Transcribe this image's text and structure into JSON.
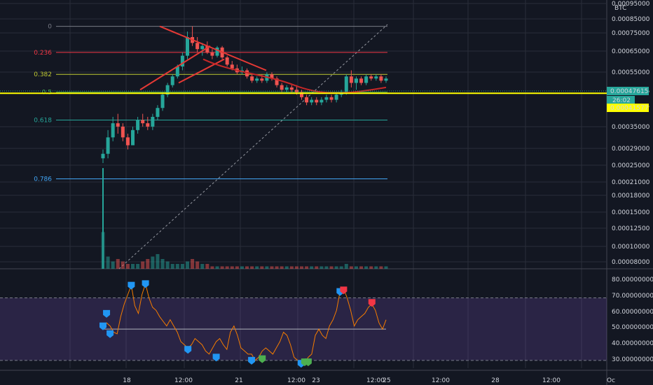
{
  "chart_data": [
    {
      "type": "candlestick",
      "symbol_unit": "BTC",
      "price_axis": {
        "scale": "log",
        "ticks": [
          "0.00095000",
          "0.00085000",
          "0.00075000",
          "0.00065000",
          "0.00055000",
          "0.00047615",
          "0.00041577",
          "0.00035000",
          "0.00029000",
          "0.00025000",
          "0.00021000",
          "0.00018000",
          "0.00015000",
          "0.00012500",
          "0.00010000",
          "0.00008000"
        ]
      },
      "price_badges": [
        {
          "label": "0.00047615",
          "color": "#26a69a",
          "text_color": "#000000"
        },
        {
          "label": "26:02",
          "color": "#26a69a",
          "text_color": "#000000"
        },
        {
          "label": "0.00041577",
          "color": "#ffff00",
          "text_color": "#000000"
        }
      ],
      "time_ticks": [
        "18",
        "12:00",
        "21",
        "12:00",
        "23",
        "12:00",
        "25",
        "12:00",
        "28",
        "12:00",
        "Oc"
      ],
      "fib_levels": [
        {
          "label": "0",
          "value": 0.0008,
          "color": "#787b86"
        },
        {
          "label": "0.236",
          "value": 0.00062,
          "color": "#f23645"
        },
        {
          "label": "0.382",
          "value": 0.0005,
          "color": "#c0ca33"
        },
        {
          "label": "0.5",
          "value": 0.00042,
          "color": "#4caf50"
        },
        {
          "label": "0.618",
          "value": 0.00032,
          "color": "#26a69a"
        },
        {
          "label": "0.786",
          "value": 0.00018,
          "color": "#42a5f5"
        }
      ],
      "horizontal_line": {
        "value": 0.00041577,
        "color": "#ffff00"
      },
      "series": [
        {
          "name": "",
          "points": [
            {
              "t": 0,
              "o": 0.00022,
              "h": 0.00024,
              "l": 0.00021,
              "c": 0.00023
            },
            {
              "t": 1,
              "o": 0.00023,
              "h": 0.00029,
              "l": 0.00022,
              "c": 0.00027
            },
            {
              "t": 2,
              "o": 0.00027,
              "h": 0.00033,
              "l": 0.00026,
              "c": 0.00031
            },
            {
              "t": 3,
              "o": 0.00031,
              "h": 0.00034,
              "l": 0.00028,
              "c": 0.0003
            },
            {
              "t": 4,
              "o": 0.0003,
              "h": 0.00031,
              "l": 0.00026,
              "c": 0.00027
            },
            {
              "t": 5,
              "o": 0.00027,
              "h": 0.00028,
              "l": 0.00024,
              "c": 0.00025
            },
            {
              "t": 6,
              "o": 0.00025,
              "h": 0.0003,
              "l": 0.00025,
              "c": 0.00029
            },
            {
              "t": 7,
              "o": 0.00029,
              "h": 0.00033,
              "l": 0.00028,
              "c": 0.00032
            },
            {
              "t": 8,
              "o": 0.00032,
              "h": 0.00034,
              "l": 0.0003,
              "c": 0.00031
            },
            {
              "t": 9,
              "o": 0.00031,
              "h": 0.00033,
              "l": 0.00029,
              "c": 0.0003
            },
            {
              "t": 10,
              "o": 0.0003,
              "h": 0.00034,
              "l": 0.00029,
              "c": 0.00033
            },
            {
              "t": 11,
              "o": 0.00033,
              "h": 0.00037,
              "l": 0.00032,
              "c": 0.00036
            },
            {
              "t": 12,
              "o": 0.00036,
              "h": 0.00042,
              "l": 0.00035,
              "c": 0.00041
            },
            {
              "t": 13,
              "o": 0.00041,
              "h": 0.00046,
              "l": 0.0004,
              "c": 0.00045
            },
            {
              "t": 14,
              "o": 0.00045,
              "h": 0.0005,
              "l": 0.00044,
              "c": 0.00049
            },
            {
              "t": 15,
              "o": 0.00049,
              "h": 0.00055,
              "l": 0.00048,
              "c": 0.00054
            },
            {
              "t": 16,
              "o": 0.00054,
              "h": 0.00062,
              "l": 0.00052,
              "c": 0.0006
            },
            {
              "t": 17,
              "o": 0.0006,
              "h": 0.00076,
              "l": 0.00058,
              "c": 0.00072
            },
            {
              "t": 18,
              "o": 0.00072,
              "h": 0.0008,
              "l": 0.00066,
              "c": 0.00068
            },
            {
              "t": 19,
              "o": 0.00068,
              "h": 0.00072,
              "l": 0.00062,
              "c": 0.00064
            },
            {
              "t": 20,
              "o": 0.00064,
              "h": 0.00068,
              "l": 0.0006,
              "c": 0.00066
            },
            {
              "t": 21,
              "o": 0.00066,
              "h": 0.00069,
              "l": 0.00061,
              "c": 0.00062
            },
            {
              "t": 22,
              "o": 0.00062,
              "h": 0.00064,
              "l": 0.00058,
              "c": 0.0006
            },
            {
              "t": 23,
              "o": 0.0006,
              "h": 0.00066,
              "l": 0.00059,
              "c": 0.00065
            },
            {
              "t": 24,
              "o": 0.00065,
              "h": 0.00066,
              "l": 0.00058,
              "c": 0.00059
            },
            {
              "t": 25,
              "o": 0.00059,
              "h": 0.0006,
              "l": 0.00054,
              "c": 0.00055
            },
            {
              "t": 26,
              "o": 0.00055,
              "h": 0.00057,
              "l": 0.00052,
              "c": 0.00053
            },
            {
              "t": 27,
              "o": 0.00053,
              "h": 0.00055,
              "l": 0.0005,
              "c": 0.00051
            },
            {
              "t": 28,
              "o": 0.00051,
              "h": 0.00054,
              "l": 0.0005,
              "c": 0.00052
            },
            {
              "t": 29,
              "o": 0.00052,
              "h": 0.00053,
              "l": 0.00048,
              "c": 0.00049
            },
            {
              "t": 30,
              "o": 0.00049,
              "h": 0.0005,
              "l": 0.00046,
              "c": 0.00047
            },
            {
              "t": 31,
              "o": 0.00047,
              "h": 0.00049,
              "l": 0.00046,
              "c": 0.00048
            },
            {
              "t": 32,
              "o": 0.00048,
              "h": 0.0005,
              "l": 0.00046,
              "c": 0.00047
            },
            {
              "t": 33,
              "o": 0.00047,
              "h": 0.00051,
              "l": 0.00046,
              "c": 0.0005
            },
            {
              "t": 34,
              "o": 0.0005,
              "h": 0.00051,
              "l": 0.00047,
              "c": 0.00048
            },
            {
              "t": 35,
              "o": 0.00048,
              "h": 0.00049,
              "l": 0.00044,
              "c": 0.00045
            },
            {
              "t": 36,
              "o": 0.00045,
              "h": 0.00046,
              "l": 0.00042,
              "c": 0.00043
            },
            {
              "t": 37,
              "o": 0.00043,
              "h": 0.00045,
              "l": 0.00042,
              "c": 0.00044
            },
            {
              "t": 38,
              "o": 0.00044,
              "h": 0.00045,
              "l": 0.00042,
              "c": 0.00043
            },
            {
              "t": 39,
              "o": 0.00043,
              "h": 0.00045,
              "l": 0.00041,
              "c": 0.00042
            },
            {
              "t": 40,
              "o": 0.00042,
              "h": 0.00043,
              "l": 0.00039,
              "c": 0.0004
            },
            {
              "t": 41,
              "o": 0.0004,
              "h": 0.00041,
              "l": 0.00037,
              "c": 0.00038
            },
            {
              "t": 42,
              "o": 0.00038,
              "h": 0.0004,
              "l": 0.00037,
              "c": 0.00039
            },
            {
              "t": 43,
              "o": 0.00039,
              "h": 0.0004,
              "l": 0.00037,
              "c": 0.00038
            },
            {
              "t": 44,
              "o": 0.00038,
              "h": 0.0004,
              "l": 0.00037,
              "c": 0.00039
            },
            {
              "t": 45,
              "o": 0.00039,
              "h": 0.00041,
              "l": 0.00038,
              "c": 0.0004
            },
            {
              "t": 46,
              "o": 0.0004,
              "h": 0.00041,
              "l": 0.00038,
              "c": 0.00039
            },
            {
              "t": 47,
              "o": 0.00039,
              "h": 0.00042,
              "l": 0.00038,
              "c": 0.00041
            },
            {
              "t": 48,
              "o": 0.00041,
              "h": 0.00043,
              "l": 0.0004,
              "c": 0.00042
            },
            {
              "t": 49,
              "o": 0.00042,
              "h": 0.0005,
              "l": 0.00041,
              "c": 0.00049
            },
            {
              "t": 50,
              "o": 0.00049,
              "h": 0.00052,
              "l": 0.00044,
              "c": 0.00046
            },
            {
              "t": 51,
              "o": 0.00046,
              "h": 0.00049,
              "l": 0.00043,
              "c": 0.00048
            },
            {
              "t": 52,
              "o": 0.00048,
              "h": 0.00049,
              "l": 0.00045,
              "c": 0.00046
            },
            {
              "t": 53,
              "o": 0.00046,
              "h": 0.0005,
              "l": 0.00045,
              "c": 0.00049
            },
            {
              "t": 54,
              "o": 0.00049,
              "h": 0.0005,
              "l": 0.00047,
              "c": 0.00048
            },
            {
              "t": 55,
              "o": 0.00048,
              "h": 0.0005,
              "l": 0.00047,
              "c": 0.00049
            },
            {
              "t": 56,
              "o": 0.00049,
              "h": 0.0005,
              "l": 0.00046,
              "c": 0.00047
            },
            {
              "t": 57,
              "o": 0.00047,
              "h": 0.00049,
              "l": 0.00046,
              "c": 0.00048
            }
          ]
        }
      ],
      "volumes": [
        0.00015,
        5e-05,
        3e-05,
        4e-05,
        3e-05,
        2e-05,
        2e-05,
        2e-05,
        3e-05,
        4e-05,
        5e-05,
        6e-05,
        4e-05,
        3e-05,
        2e-05,
        2e-05,
        2e-05,
        3e-05,
        4e-05,
        3e-05,
        2e-05,
        2e-05,
        1e-05,
        1e-05,
        1e-05,
        1e-05,
        1e-05,
        1e-05,
        1e-05,
        1e-05,
        1e-05,
        1e-05,
        1e-05,
        1e-05,
        1e-05,
        1e-05,
        1e-05,
        1e-05,
        1e-05,
        1e-05,
        1e-05,
        1e-05,
        1e-05,
        1e-05,
        1e-05,
        1e-05,
        1e-05,
        1e-05,
        1e-05,
        2e-05,
        1e-05,
        1e-05,
        1e-05,
        1e-05,
        1e-05,
        1e-05,
        1e-05,
        1e-05
      ]
    },
    {
      "type": "line",
      "y_axis": {
        "ticks": [
          "80.00000000",
          "70.00000000",
          "60.00000000",
          "50.00000000",
          "40.00000000",
          "30.00000000"
        ],
        "ylim": [
          25,
          85
        ]
      },
      "band": {
        "upper": 70,
        "lower": 30,
        "color": "#7e57c2"
      },
      "midline": 50,
      "series": [
        {
          "name": "",
          "color": "#f57c00",
          "values": [
            50,
            54,
            52,
            48,
            47,
            58,
            66,
            72,
            78,
            65,
            60,
            72,
            79,
            70,
            64,
            62,
            58,
            55,
            52,
            56,
            52,
            48,
            42,
            40,
            38,
            40,
            44,
            42,
            40,
            36,
            34,
            38,
            42,
            44,
            40,
            37,
            48,
            52,
            46,
            38,
            36,
            34,
            34,
            30,
            32,
            36,
            38,
            36,
            34,
            38,
            42,
            48,
            46,
            40,
            32,
            30,
            29,
            28,
            32,
            34,
            46,
            50,
            46,
            44,
            52,
            56,
            62,
            74,
            76,
            70,
            62,
            52,
            56,
            58,
            60,
            64,
            66,
            62,
            54,
            50,
            56
          ]
        }
      ],
      "markers": [
        {
          "i": 0,
          "v": 52,
          "color": "#2196f3"
        },
        {
          "i": 1,
          "v": 60,
          "color": "#2196f3"
        },
        {
          "i": 2,
          "v": 47,
          "color": "#2196f3"
        },
        {
          "i": 8,
          "v": 78,
          "color": "#2196f3"
        },
        {
          "i": 12,
          "v": 79,
          "color": "#2196f3"
        },
        {
          "i": 24,
          "v": 37,
          "color": "#2196f3"
        },
        {
          "i": 32,
          "v": 32,
          "color": "#2196f3"
        },
        {
          "i": 42,
          "v": 30,
          "color": "#2196f3"
        },
        {
          "i": 45,
          "v": 31,
          "color": "#4caf50"
        },
        {
          "i": 56,
          "v": 28,
          "color": "#2196f3"
        },
        {
          "i": 57,
          "v": 29,
          "color": "#4caf50"
        },
        {
          "i": 58,
          "v": 29,
          "color": "#4caf50"
        },
        {
          "i": 67,
          "v": 74,
          "color": "#2196f3"
        },
        {
          "i": 68,
          "v": 75,
          "color": "#f23645"
        },
        {
          "i": 76,
          "v": 67,
          "color": "#f23645"
        }
      ]
    }
  ]
}
